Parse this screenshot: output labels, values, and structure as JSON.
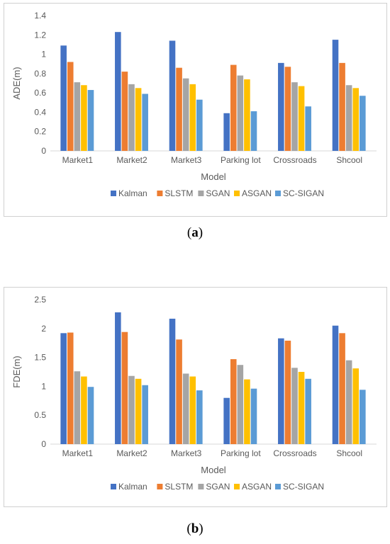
{
  "colors": {
    "Kalman": "#4472C4",
    "SLSTM": "#ED7D31",
    "SGAN": "#A5A5A5",
    "ASGAN": "#FFC000",
    "SC-SIGAN": "#5B9BD5",
    "axis": "#d9d9d9",
    "text": "#595959"
  },
  "captions": {
    "a": "a",
    "b": "b"
  },
  "chart_data": [
    {
      "type": "bar",
      "title": "",
      "xlabel": "Model",
      "ylabel": "ADE(m)",
      "ylim": [
        0,
        1.4
      ],
      "yticks": [
        "0",
        "0.2",
        "0.4",
        "0.6",
        "0.8",
        "1",
        "1.2",
        "1.4"
      ],
      "grid": false,
      "legend": "bottom",
      "categories": [
        "Market1",
        "Market2",
        "Market3",
        "Parking lot",
        "Crossroads",
        "Shcool"
      ],
      "series": [
        {
          "name": "Kalman",
          "values": [
            1.09,
            1.23,
            1.14,
            0.39,
            0.91,
            1.15
          ]
        },
        {
          "name": "SLSTM",
          "values": [
            0.92,
            0.82,
            0.86,
            0.89,
            0.87,
            0.91
          ]
        },
        {
          "name": "SGAN",
          "values": [
            0.71,
            0.69,
            0.75,
            0.78,
            0.71,
            0.68
          ]
        },
        {
          "name": "ASGAN",
          "values": [
            0.68,
            0.65,
            0.69,
            0.74,
            0.67,
            0.65
          ]
        },
        {
          "name": "SC-SIGAN",
          "values": [
            0.63,
            0.59,
            0.53,
            0.41,
            0.46,
            0.57
          ]
        }
      ]
    },
    {
      "type": "bar",
      "title": "",
      "xlabel": "Model",
      "ylabel": "FDE(m)",
      "ylim": [
        0,
        2.5
      ],
      "yticks": [
        "0",
        "0.5",
        "1",
        "1.5",
        "2",
        "2.5"
      ],
      "grid": false,
      "legend": "bottom",
      "categories": [
        "Market1",
        "Market2",
        "Market3",
        "Parking lot",
        "Crossroads",
        "Shcool"
      ],
      "series": [
        {
          "name": "Kalman",
          "values": [
            1.92,
            2.28,
            2.17,
            0.8,
            1.83,
            2.05
          ]
        },
        {
          "name": "SLSTM",
          "values": [
            1.93,
            1.94,
            1.81,
            1.47,
            1.79,
            1.92
          ]
        },
        {
          "name": "SGAN",
          "values": [
            1.26,
            1.18,
            1.22,
            1.37,
            1.32,
            1.45
          ]
        },
        {
          "name": "ASGAN",
          "values": [
            1.17,
            1.13,
            1.17,
            1.12,
            1.25,
            1.31
          ]
        },
        {
          "name": "SC-SIGAN",
          "values": [
            0.99,
            1.02,
            0.93,
            0.96,
            1.13,
            0.94
          ]
        }
      ]
    }
  ]
}
